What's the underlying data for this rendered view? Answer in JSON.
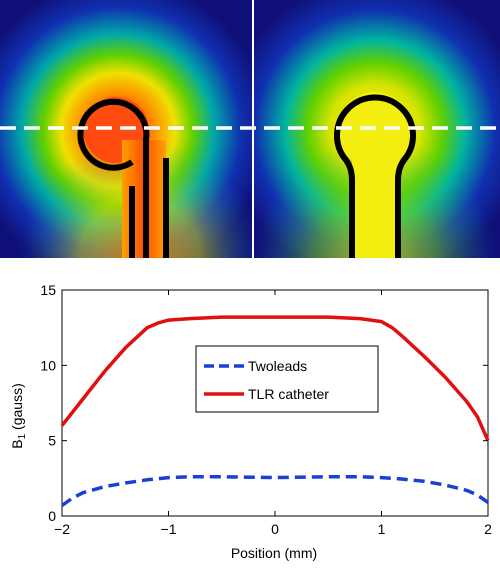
{
  "heatmaps": [
    {
      "name": "Twoleads"
    },
    {
      "name": "TLR catheter"
    }
  ],
  "chart_data": {
    "type": "line",
    "xlabel": "Position (mm)",
    "ylabel_main": "B",
    "ylabel_sub": "1",
    "ylabel_rest": " (gauss)",
    "xlim": [
      -2,
      2
    ],
    "ylim": [
      0,
      15
    ],
    "xticks": [
      -2,
      -1,
      0,
      1,
      2
    ],
    "xtick_labels": [
      "−2",
      "−1",
      "0",
      "1",
      "2"
    ],
    "yticks": [
      0,
      5,
      10,
      15
    ],
    "ytick_labels": [
      "0",
      "5",
      "10",
      "15"
    ],
    "legend_position": "center",
    "series": [
      {
        "name": "Twoleads",
        "color": "#1a3fd4",
        "dash": "dashed",
        "x": [
          -2.0,
          -1.9,
          -1.8,
          -1.6,
          -1.4,
          -1.2,
          -1.0,
          -0.8,
          -0.5,
          0.0,
          0.5,
          0.8,
          1.0,
          1.2,
          1.4,
          1.6,
          1.8,
          1.9,
          2.0
        ],
        "y": [
          0.7,
          1.2,
          1.55,
          1.95,
          2.2,
          2.4,
          2.55,
          2.6,
          2.6,
          2.55,
          2.6,
          2.6,
          2.55,
          2.45,
          2.3,
          2.05,
          1.7,
          1.4,
          0.9
        ]
      },
      {
        "name": "TLR catheter",
        "color": "#e01010",
        "dash": "solid",
        "x": [
          -2.0,
          -1.9,
          -1.8,
          -1.6,
          -1.4,
          -1.2,
          -1.1,
          -1.0,
          -0.8,
          -0.5,
          0.0,
          0.5,
          0.8,
          1.0,
          1.1,
          1.2,
          1.4,
          1.6,
          1.8,
          1.9,
          2.0
        ],
        "y": [
          6.0,
          6.9,
          7.8,
          9.6,
          11.2,
          12.5,
          12.8,
          13.0,
          13.1,
          13.2,
          13.2,
          13.2,
          13.1,
          12.9,
          12.5,
          11.9,
          10.6,
          9.2,
          7.6,
          6.6,
          5.0
        ]
      }
    ]
  }
}
